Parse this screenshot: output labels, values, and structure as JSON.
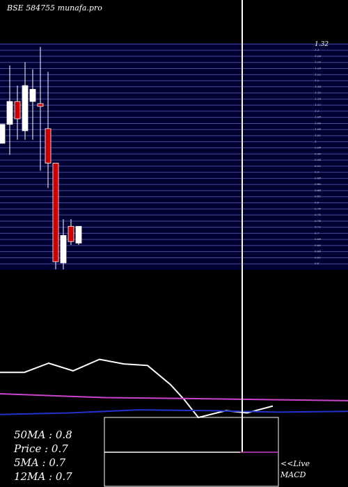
{
  "chart_data": {
    "type": "candlestick",
    "title": "BSE 584755 munafa.pro",
    "categories": [
      null,
      null,
      null,
      null,
      null,
      null,
      null,
      null,
      null,
      null,
      null
    ],
    "open": [
      0.995,
      1.057,
      1.132,
      1.036,
      1.132,
      1.125,
      1.043,
      0.93,
      0.603,
      0.723,
      0.668
    ],
    "close": [
      1.057,
      1.132,
      1.075,
      1.184,
      1.172,
      1.116,
      0.93,
      0.607,
      0.693,
      0.673,
      0.723
    ],
    "high": [
      1.057,
      1.25,
      1.184,
      1.261,
      1.238,
      1.311,
      1.229,
      0.93,
      0.746,
      0.746,
      0.723
    ],
    "low": [
      0.995,
      0.957,
      1.007,
      1.007,
      1.007,
      0.905,
      0.848,
      0.582,
      0.582,
      0.662,
      0.662
    ],
    "up_color": "#ffffff",
    "down_color": "#cc0000",
    "ylim": [
      0.58,
      1.33
    ],
    "yticks": [
      1.32,
      1.3,
      1.28,
      1.26,
      1.24,
      1.22,
      1.2,
      1.18,
      1.16,
      1.14,
      1.12,
      1.1,
      1.08,
      1.06,
      1.04,
      1.02,
      1,
      0.98,
      0.96,
      0.94,
      0.92,
      0.9,
      0.88,
      0.86,
      0.84,
      0.82,
      0.8,
      0.78,
      0.76,
      0.74,
      0.72,
      0.7,
      0.68,
      0.66,
      0.64,
      0.62,
      0.6
    ],
    "grid": true,
    "indicators": {
      "ylim": [
        0,
        100
      ],
      "series": [
        {
          "color": "#ffffff",
          "x": [
            0,
            35,
            70,
            105,
            143,
            178,
            212,
            245,
            265,
            285,
            325,
            355,
            392
          ],
          "values": [
            68,
            68,
            80,
            70,
            85,
            79,
            77,
            52,
            32,
            9,
            18,
            15,
            24
          ]
        },
        {
          "color": "#cc44cc",
          "x": [
            0,
            150,
            250,
            500
          ],
          "values": [
            40,
            35,
            34,
            31
          ]
        },
        {
          "color": "#2233cc",
          "x": [
            0,
            100,
            200,
            300,
            400,
            500
          ],
          "values": [
            13,
            15,
            19,
            18,
            16,
            17
          ]
        }
      ]
    },
    "legend": [
      "50MA : 0.8",
      "Price   : 0.7",
      "5MA : 0.7",
      "12MA : 0.7"
    ],
    "live": "<<Live",
    "macd": "MACD"
  }
}
